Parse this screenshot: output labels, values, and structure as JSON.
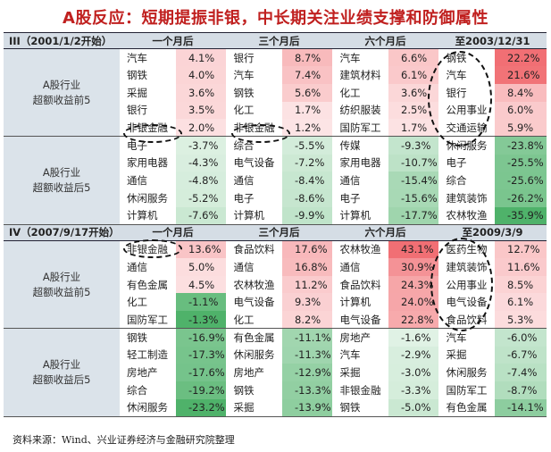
{
  "title": "A股反应：短期提振非银，中长期关注业绩支撑和防御属性",
  "source": "资料来源：Wind、兴业证券经济与金融研究院整理",
  "colors": {
    "red_dark": "#ef6b6e",
    "green_dark": "#4fb66c",
    "header_bg": "#d5dde5",
    "title_red": "#c0201f"
  },
  "sections": [
    {
      "label": "III（2001/1/2开始）",
      "periods": [
        "一个月后",
        "三个月后",
        "六个月后",
        "至2003/12/31"
      ],
      "groups": [
        {
          "label": "A股行业超额收益前5",
          "rows": [
            [
              [
                "汽车",
                "4.1%"
              ],
              [
                "银行",
                "8.7%"
              ],
              [
                "汽车",
                "6.6%"
              ],
              [
                "钢铁",
                "22.2%"
              ]
            ],
            [
              [
                "钢铁",
                "4.0%"
              ],
              [
                "汽车",
                "7.4%"
              ],
              [
                "建筑材料",
                "6.1%"
              ],
              [
                "汽车",
                "21.6%"
              ]
            ],
            [
              [
                "采掘",
                "3.6%"
              ],
              [
                "钢铁",
                "5.6%"
              ],
              [
                "化工",
                "3.6%"
              ],
              [
                "银行",
                "8.4%"
              ]
            ],
            [
              [
                "银行",
                "3.5%"
              ],
              [
                "化工",
                "1.7%"
              ],
              [
                "纺织服装",
                "2.5%"
              ],
              [
                "公用事业",
                "6.0%"
              ]
            ],
            [
              [
                "非银金融",
                "2.0%"
              ],
              [
                "非银金融",
                "1.2%"
              ],
              [
                "国防军工",
                "1.7%"
              ],
              [
                "交通运输",
                "5.9%"
              ]
            ]
          ]
        },
        {
          "label": "A股行业超额收益后5",
          "rows": [
            [
              [
                "电子",
                "-3.7%"
              ],
              [
                "综合",
                "-5.5%"
              ],
              [
                "传媒",
                "-9.3%"
              ],
              [
                "休闲服务",
                "-23.8%"
              ]
            ],
            [
              [
                "家用电器",
                "-4.3%"
              ],
              [
                "电气设备",
                "-7.2%"
              ],
              [
                "家用电器",
                "-10.7%"
              ],
              [
                "电子",
                "-25.5%"
              ]
            ],
            [
              [
                "通信",
                "-4.8%"
              ],
              [
                "通信",
                "-8.4%"
              ],
              [
                "通信",
                "-15.4%"
              ],
              [
                "综合",
                "-25.6%"
              ]
            ],
            [
              [
                "休闲服务",
                "-5.2%"
              ],
              [
                "电子",
                "-8.6%"
              ],
              [
                "电子",
                "-15.6%"
              ],
              [
                "建筑装饰",
                "-26.2%"
              ]
            ],
            [
              [
                "计算机",
                "-7.6%"
              ],
              [
                "计算机",
                "-9.9%"
              ],
              [
                "计算机",
                "-17.7%"
              ],
              [
                "农林牧渔",
                "-35.9%"
              ]
            ]
          ]
        }
      ]
    },
    {
      "label": "IV（2007/9/17开始）",
      "periods": [
        "一个月后",
        "三个月后",
        "六个月后",
        "至2009/3/9"
      ],
      "groups": [
        {
          "label": "A股行业超额收益前5",
          "rows": [
            [
              [
                "非银金融",
                "13.6%"
              ],
              [
                "食品饮料",
                "17.6%"
              ],
              [
                "农林牧渔",
                "43.1%"
              ],
              [
                "医药生物",
                "12.7%"
              ]
            ],
            [
              [
                "通信",
                "5.0%"
              ],
              [
                "通信",
                "16.8%"
              ],
              [
                "通信",
                "30.9%"
              ],
              [
                "建筑装饰",
                "11.6%"
              ]
            ],
            [
              [
                "有色金属",
                "4.5%"
              ],
              [
                "农林牧渔",
                "11.2%"
              ],
              [
                "食品饮料",
                "24.3%"
              ],
              [
                "公用事业",
                "8.5%"
              ]
            ],
            [
              [
                "化工",
                "-1.1%"
              ],
              [
                "电气设备",
                "9.3%"
              ],
              [
                "计算机",
                "24.0%"
              ],
              [
                "电气设备",
                "6.1%"
              ]
            ],
            [
              [
                "国防军工",
                "-1.3%"
              ],
              [
                "化工",
                "8.2%"
              ],
              [
                "电气设备",
                "22.8%"
              ],
              [
                "食品饮料",
                "5.3%"
              ]
            ]
          ]
        },
        {
          "label": "A股行业超额收益后5",
          "rows": [
            [
              [
                "钢铁",
                "-16.9%"
              ],
              [
                "有色金属",
                "-11.1%"
              ],
              [
                "房地产",
                "-1.6%"
              ],
              [
                "汽车",
                "-6.0%"
              ]
            ],
            [
              [
                "轻工制造",
                "-17.3%"
              ],
              [
                "休闲服务",
                "-11.3%"
              ],
              [
                "汽车",
                "-2.9%"
              ],
              [
                "采掘",
                "-6.7%"
              ]
            ],
            [
              [
                "房地产",
                "-17.6%"
              ],
              [
                "房地产",
                "-12.9%"
              ],
              [
                "采掘",
                "-3.0%"
              ],
              [
                "休闲服务",
                "-7.4%"
              ]
            ],
            [
              [
                "综合",
                "-19.2%"
              ],
              [
                "钢铁",
                "-13.3%"
              ],
              [
                "非银金融",
                "-3.3%"
              ],
              [
                "国防军工",
                "-8.7%"
              ]
            ],
            [
              [
                "休闲服务",
                "-23.2%"
              ],
              [
                "采掘",
                "-13.9%"
              ],
              [
                "钢铁",
                "-5.0%"
              ],
              [
                "有色金属",
                "-14.1%"
              ]
            ]
          ]
        }
      ]
    }
  ]
}
